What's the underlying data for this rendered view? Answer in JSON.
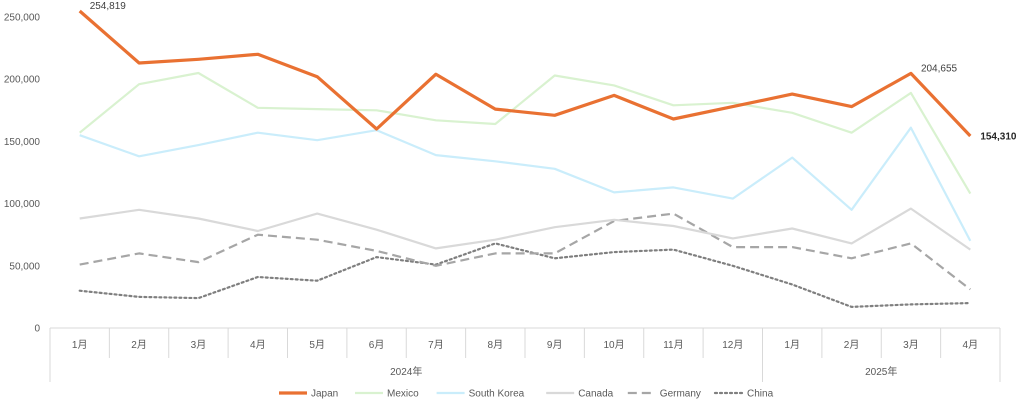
{
  "chart_data": {
    "type": "line",
    "title": "",
    "xlabel": "",
    "ylabel": "",
    "ylim": [
      0,
      250000
    ],
    "yticks": [
      "0",
      "50,000",
      "100,000",
      "150,000",
      "200,000",
      "250,000"
    ],
    "ytick_values": [
      0,
      50000,
      100000,
      150000,
      200000,
      250000
    ],
    "categories": [
      "1月",
      "2月",
      "3月",
      "4月",
      "5月",
      "6月",
      "7月",
      "8月",
      "9月",
      "10月",
      "11月",
      "12月",
      "1月",
      "2月",
      "3月",
      "4月"
    ],
    "groups": [
      {
        "label": "2024年",
        "span": 12
      },
      {
        "label": "2025年",
        "span": 4
      }
    ],
    "grid": false,
    "legend_position": "bottom",
    "series": [
      {
        "name": "Japan",
        "color": "#E97132",
        "dash": "solid",
        "width": 3.2,
        "values": [
          254819,
          213000,
          216000,
          220000,
          202000,
          160000,
          204000,
          176000,
          171000,
          187000,
          168000,
          178000,
          188000,
          178000,
          204655,
          154310
        ]
      },
      {
        "name": "Mexico",
        "color": "#D9F2D0",
        "dash": "solid",
        "width": 2.2,
        "values": [
          157000,
          196000,
          205000,
          177000,
          176000,
          175000,
          167000,
          164000,
          203000,
          195000,
          179000,
          181000,
          173000,
          157000,
          189000,
          108000
        ]
      },
      {
        "name": "South Korea",
        "color": "#CAEDFB",
        "dash": "solid",
        "width": 2.2,
        "values": [
          155000,
          138000,
          147000,
          157000,
          151000,
          159000,
          139000,
          134000,
          128000,
          109000,
          113000,
          104000,
          137000,
          95000,
          161000,
          70000
        ]
      },
      {
        "name": "Canada",
        "color": "#D9D9D9",
        "dash": "solid",
        "width": 2.2,
        "values": [
          88000,
          95000,
          88000,
          78000,
          92000,
          79000,
          64000,
          71000,
          81000,
          87000,
          82000,
          72000,
          80000,
          68000,
          96000,
          63000
        ]
      },
      {
        "name": "Germany",
        "color": "#A6A6A6",
        "dash": "long-dash",
        "width": 2.2,
        "values": [
          51000,
          60000,
          53000,
          75000,
          71000,
          62000,
          50000,
          60000,
          60000,
          86000,
          92000,
          65000,
          65000,
          56000,
          68000,
          31000
        ]
      },
      {
        "name": "China",
        "color": "#7F7F7F",
        "dash": "dotted",
        "width": 2.2,
        "values": [
          30000,
          25000,
          24000,
          41000,
          38000,
          57000,
          51000,
          68000,
          56000,
          61000,
          63000,
          50000,
          35000,
          17000,
          19000,
          20000
        ]
      }
    ],
    "data_labels": [
      {
        "series": "Japan",
        "index": 0,
        "text": "254,819",
        "bold": false
      },
      {
        "series": "Japan",
        "index": 14,
        "text": "204,655",
        "bold": false
      },
      {
        "series": "Japan",
        "index": 15,
        "text": "154,310",
        "bold": true
      }
    ]
  }
}
